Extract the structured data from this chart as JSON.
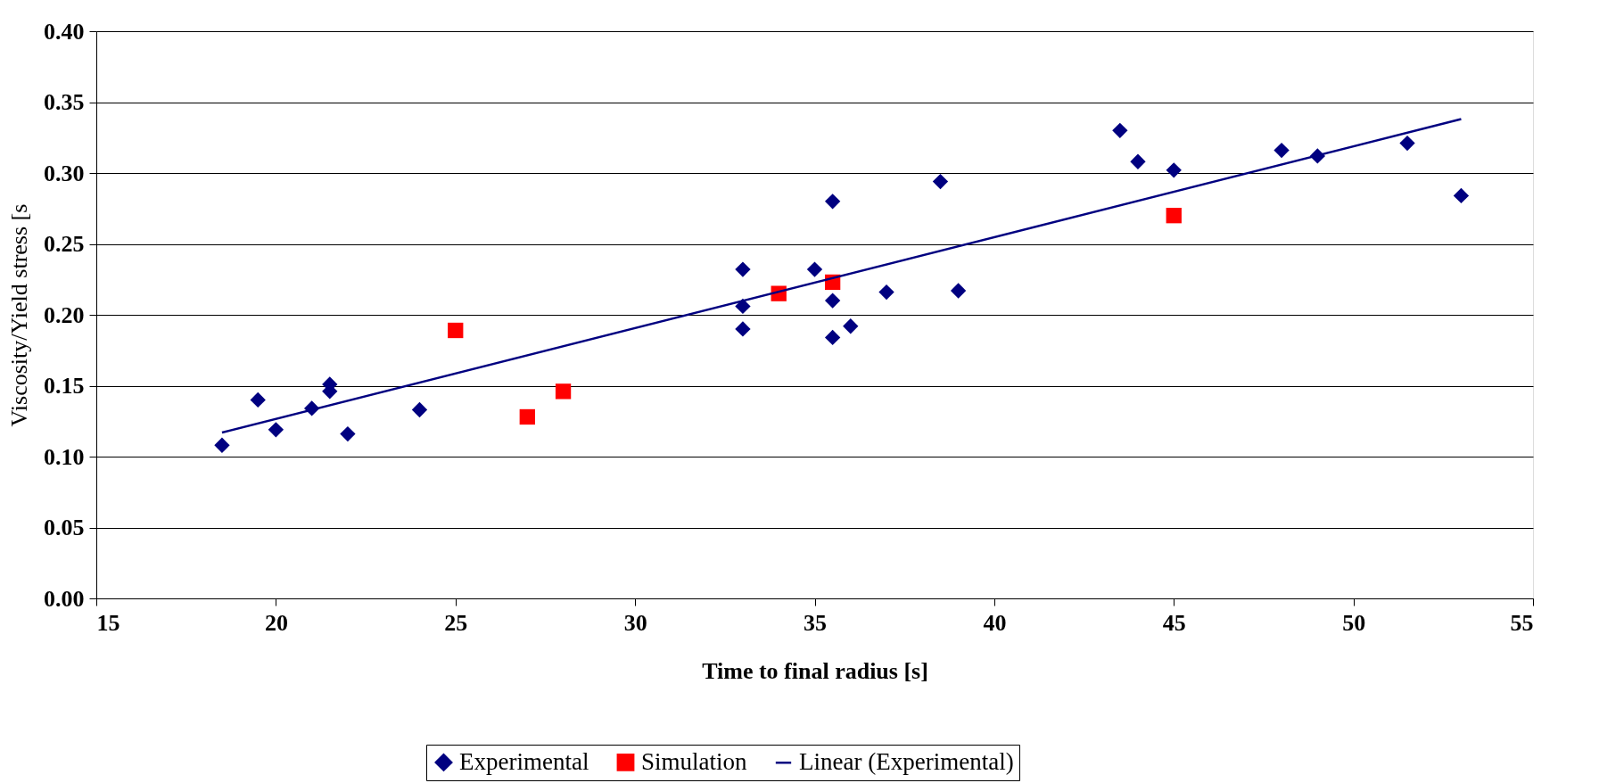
{
  "chart_data": {
    "type": "scatter",
    "xlabel": "Time to final radius [s]",
    "ylabel": "Viscosity/Yield stress [s",
    "xlim": [
      15,
      55
    ],
    "xticks": [
      15,
      20,
      25,
      30,
      35,
      40,
      45,
      50,
      55
    ],
    "ylim": [
      0,
      0.4
    ],
    "yticks": [
      {
        "value": 0,
        "label": "0.00"
      },
      {
        "value": 0.05,
        "label": "0.05"
      },
      {
        "value": 0.1,
        "label": "0.10"
      },
      {
        "value": 0.15,
        "label": "0.15"
      },
      {
        "value": 0.2,
        "label": "0.20"
      },
      {
        "value": 0.25,
        "label": "0.25"
      },
      {
        "value": 0.3,
        "label": "0.30"
      },
      {
        "value": 0.35,
        "label": "0.35"
      },
      {
        "value": 0.4,
        "label": "0.40"
      }
    ],
    "grid": "y",
    "legend": "bottom",
    "series": [
      {
        "name": "Experimental",
        "marker": "diamond",
        "color": "#000080",
        "x": [
          18.5,
          19.5,
          20,
          21,
          21.5,
          21.5,
          22,
          24,
          33,
          33,
          33,
          35,
          35.5,
          35.5,
          35.5,
          36,
          37,
          38.5,
          39,
          43.5,
          44,
          45,
          48,
          49,
          51.5,
          53
        ],
        "values": [
          0.108,
          0.14,
          0.119,
          0.134,
          0.151,
          0.146,
          0.116,
          0.133,
          0.232,
          0.206,
          0.19,
          0.232,
          0.28,
          0.21,
          0.184,
          0.192,
          0.216,
          0.294,
          0.217,
          0.33,
          0.308,
          0.302,
          0.316,
          0.312,
          0.321,
          0.284
        ]
      },
      {
        "name": "Simulation",
        "marker": "square",
        "color": "#ff0000",
        "x": [
          25,
          27,
          28,
          34,
          35.5,
          45
        ],
        "values": [
          0.189,
          0.128,
          0.146,
          0.215,
          0.223,
          0.27
        ]
      },
      {
        "name": "Linear (Experimental)",
        "type": "line",
        "marker": "none",
        "line_style": "solid",
        "color": "#000080",
        "x": [
          18.5,
          53
        ],
        "values": [
          0.117,
          0.338
        ]
      }
    ]
  }
}
